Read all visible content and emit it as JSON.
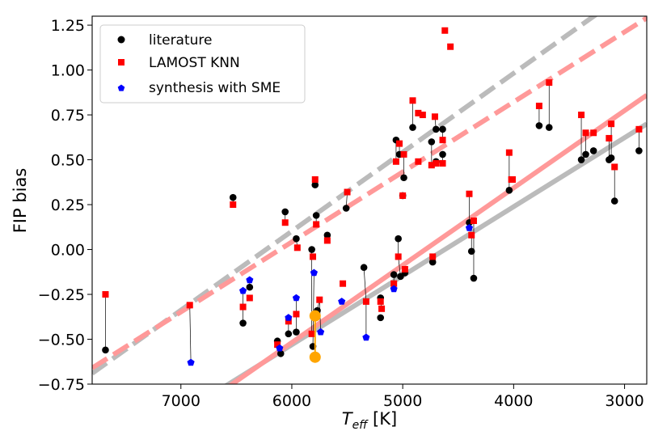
{
  "chart_data": {
    "type": "scatter",
    "x_label_main": "T",
    "x_label_sub": "eff",
    "x_label_unit": " [K]",
    "y_label": "FIP bias",
    "xlim": [
      7800,
      2800
    ],
    "ylim": [
      -0.75,
      1.3
    ],
    "x_reversed": true,
    "x_ticks": [
      7000,
      6000,
      5000,
      4000,
      3000
    ],
    "y_ticks": [
      -0.75,
      -0.5,
      -0.25,
      0.0,
      0.25,
      0.5,
      0.75,
      1.0,
      1.25
    ],
    "x_tick_labels": [
      "7000",
      "6000",
      "5000",
      "4000",
      "3000"
    ],
    "y_tick_labels": [
      "−0.75",
      "−0.50",
      "−0.25",
      "0.00",
      "0.25",
      "0.50",
      "0.75",
      "1.00",
      "1.25"
    ],
    "grid": false,
    "legend_position": "top-left",
    "legend": [
      {
        "label": "literature",
        "marker": "circle",
        "color": "#000000"
      },
      {
        "label": "LAMOST KNN",
        "marker": "square",
        "color": "#ff0000"
      },
      {
        "label": "synthesis with SME",
        "marker": "pentagon",
        "color": "#0000ff"
      }
    ],
    "series": [
      {
        "name": "literature",
        "marker": "circle",
        "color": "#000000",
        "points": [
          [
            7680,
            -0.56
          ],
          [
            6530,
            0.29
          ],
          [
            6440,
            -0.41
          ],
          [
            6380,
            -0.21
          ],
          [
            6130,
            -0.51
          ],
          [
            6100,
            -0.58
          ],
          [
            6060,
            0.21
          ],
          [
            6030,
            -0.47
          ],
          [
            5960,
            0.06
          ],
          [
            5960,
            -0.46
          ],
          [
            5820,
            0.0
          ],
          [
            5810,
            -0.54
          ],
          [
            5790,
            0.36
          ],
          [
            5780,
            0.19
          ],
          [
            5770,
            -0.34
          ],
          [
            5680,
            0.08
          ],
          [
            5510,
            0.23
          ],
          [
            5350,
            -0.1
          ],
          [
            5200,
            -0.27
          ],
          [
            5200,
            -0.38
          ],
          [
            5080,
            -0.14
          ],
          [
            5060,
            0.61
          ],
          [
            5040,
            0.06
          ],
          [
            5030,
            0.53
          ],
          [
            5020,
            -0.15
          ],
          [
            5000,
            0.3
          ],
          [
            4990,
            0.4
          ],
          [
            4980,
            -0.13
          ],
          [
            4910,
            0.68
          ],
          [
            4740,
            0.6
          ],
          [
            4730,
            -0.07
          ],
          [
            4700,
            0.67
          ],
          [
            4700,
            0.49
          ],
          [
            4640,
            0.53
          ],
          [
            4640,
            0.67
          ],
          [
            4400,
            0.15
          ],
          [
            4380,
            -0.01
          ],
          [
            4360,
            -0.16
          ],
          [
            4040,
            0.33
          ],
          [
            3770,
            0.69
          ],
          [
            3680,
            0.68
          ],
          [
            3390,
            0.5
          ],
          [
            3350,
            0.53
          ],
          [
            3280,
            0.55
          ],
          [
            3140,
            0.5
          ],
          [
            3120,
            0.51
          ],
          [
            3090,
            0.27
          ],
          [
            2870,
            0.55
          ]
        ]
      },
      {
        "name": "LAMOST KNN",
        "marker": "square",
        "color": "#ff0000",
        "points": [
          [
            7680,
            -0.25
          ],
          [
            6920,
            -0.31
          ],
          [
            6530,
            0.25
          ],
          [
            6440,
            -0.32
          ],
          [
            6380,
            -0.27
          ],
          [
            6130,
            -0.53
          ],
          [
            6060,
            0.15
          ],
          [
            6030,
            -0.4
          ],
          [
            5960,
            -0.36
          ],
          [
            5950,
            0.01
          ],
          [
            5820,
            -0.47
          ],
          [
            5810,
            -0.04
          ],
          [
            5790,
            0.39
          ],
          [
            5780,
            0.14
          ],
          [
            5750,
            -0.28
          ],
          [
            5680,
            0.05
          ],
          [
            5540,
            -0.19
          ],
          [
            5500,
            0.32
          ],
          [
            5330,
            -0.29
          ],
          [
            5200,
            -0.29
          ],
          [
            5190,
            -0.33
          ],
          [
            5080,
            -0.19
          ],
          [
            5060,
            0.49
          ],
          [
            5040,
            -0.04
          ],
          [
            5030,
            0.59
          ],
          [
            5000,
            0.3
          ],
          [
            4990,
            0.53
          ],
          [
            4980,
            -0.11
          ],
          [
            4910,
            0.83
          ],
          [
            4860,
            0.49
          ],
          [
            4860,
            0.76
          ],
          [
            4820,
            0.75
          ],
          [
            4740,
            0.47
          ],
          [
            4730,
            -0.04
          ],
          [
            4710,
            0.74
          ],
          [
            4700,
            0.48
          ],
          [
            4640,
            0.48
          ],
          [
            4640,
            0.61
          ],
          [
            4620,
            1.22
          ],
          [
            4570,
            1.13
          ],
          [
            4400,
            0.31
          ],
          [
            4380,
            0.08
          ],
          [
            4360,
            0.16
          ],
          [
            4040,
            0.54
          ],
          [
            4020,
            0.39
          ],
          [
            4010,
            0.39
          ],
          [
            3770,
            0.8
          ],
          [
            3680,
            0.93
          ],
          [
            3390,
            0.75
          ],
          [
            3350,
            0.65
          ],
          [
            3280,
            0.65
          ],
          [
            3140,
            0.62
          ],
          [
            3120,
            0.7
          ],
          [
            3090,
            0.46
          ],
          [
            2870,
            0.67
          ]
        ]
      },
      {
        "name": "synthesis with SME",
        "marker": "pentagon",
        "color": "#0000ff",
        "points": [
          [
            6910,
            -0.63
          ],
          [
            6440,
            -0.23
          ],
          [
            6380,
            -0.17
          ],
          [
            6110,
            -0.55
          ],
          [
            6030,
            -0.38
          ],
          [
            5960,
            -0.27
          ],
          [
            5800,
            -0.13
          ],
          [
            5740,
            -0.46
          ],
          [
            5550,
            -0.29
          ],
          [
            5330,
            -0.49
          ],
          [
            5080,
            -0.22
          ],
          [
            4400,
            0.12
          ]
        ]
      }
    ],
    "connectors": [
      [
        [
          7680,
          -0.56
        ],
        [
          7680,
          -0.25
        ]
      ],
      [
        [
          6920,
          -0.31
        ],
        [
          6910,
          -0.63
        ]
      ],
      [
        [
          6530,
          0.29
        ],
        [
          6530,
          0.25
        ]
      ],
      [
        [
          6440,
          -0.41
        ],
        [
          6440,
          -0.23
        ]
      ],
      [
        [
          6380,
          -0.21
        ],
        [
          6380,
          -0.17
        ]
      ],
      [
        [
          6130,
          -0.51
        ],
        [
          6130,
          -0.53
        ]
      ],
      [
        [
          6100,
          -0.58
        ],
        [
          6110,
          -0.55
        ]
      ],
      [
        [
          6060,
          0.21
        ],
        [
          6060,
          0.15
        ]
      ],
      [
        [
          6030,
          -0.47
        ],
        [
          6030,
          -0.38
        ]
      ],
      [
        [
          5960,
          -0.46
        ],
        [
          5960,
          -0.27
        ]
      ],
      [
        [
          5960,
          0.06
        ],
        [
          5950,
          0.01
        ]
      ],
      [
        [
          5820,
          0.0
        ],
        [
          5820,
          -0.47
        ]
      ],
      [
        [
          5810,
          -0.54
        ],
        [
          5800,
          -0.13
        ]
      ],
      [
        [
          5790,
          0.36
        ],
        [
          5790,
          0.39
        ]
      ],
      [
        [
          5780,
          0.19
        ],
        [
          5780,
          0.14
        ]
      ],
      [
        [
          5770,
          -0.34
        ],
        [
          5750,
          -0.28
        ]
      ],
      [
        [
          5740,
          -0.46
        ],
        [
          5750,
          -0.28
        ]
      ],
      [
        [
          5680,
          0.08
        ],
        [
          5680,
          0.05
        ]
      ],
      [
        [
          5510,
          0.23
        ],
        [
          5500,
          0.32
        ]
      ],
      [
        [
          5350,
          -0.1
        ],
        [
          5330,
          -0.29
        ]
      ],
      [
        [
          5330,
          -0.29
        ],
        [
          5330,
          -0.49
        ]
      ],
      [
        [
          5200,
          -0.27
        ],
        [
          5190,
          -0.33
        ]
      ],
      [
        [
          5080,
          -0.14
        ],
        [
          5080,
          -0.22
        ]
      ],
      [
        [
          5060,
          0.61
        ],
        [
          5060,
          0.49
        ]
      ],
      [
        [
          5040,
          0.06
        ],
        [
          5040,
          -0.04
        ]
      ],
      [
        [
          5030,
          0.53
        ],
        [
          5030,
          0.59
        ]
      ],
      [
        [
          5020,
          -0.15
        ],
        [
          5040,
          -0.04
        ]
      ],
      [
        [
          4990,
          0.4
        ],
        [
          4990,
          0.53
        ]
      ],
      [
        [
          4980,
          -0.13
        ],
        [
          4980,
          -0.11
        ]
      ],
      [
        [
          4910,
          0.68
        ],
        [
          4910,
          0.83
        ]
      ],
      [
        [
          4740,
          0.6
        ],
        [
          4740,
          0.47
        ]
      ],
      [
        [
          4730,
          -0.07
        ],
        [
          4730,
          -0.04
        ]
      ],
      [
        [
          4700,
          0.67
        ],
        [
          4710,
          0.74
        ]
      ],
      [
        [
          4640,
          0.67
        ],
        [
          4640,
          0.61
        ]
      ],
      [
        [
          4640,
          0.53
        ],
        [
          4640,
          0.48
        ]
      ],
      [
        [
          4400,
          0.15
        ],
        [
          4400,
          0.31
        ]
      ],
      [
        [
          4380,
          -0.01
        ],
        [
          4380,
          0.08
        ]
      ],
      [
        [
          4360,
          -0.16
        ],
        [
          4360,
          0.16
        ]
      ],
      [
        [
          4040,
          0.33
        ],
        [
          4040,
          0.54
        ]
      ],
      [
        [
          3770,
          0.69
        ],
        [
          3770,
          0.8
        ]
      ],
      [
        [
          3680,
          0.68
        ],
        [
          3680,
          0.93
        ]
      ],
      [
        [
          3390,
          0.5
        ],
        [
          3390,
          0.75
        ]
      ],
      [
        [
          3350,
          0.53
        ],
        [
          3350,
          0.65
        ]
      ],
      [
        [
          3140,
          0.5
        ],
        [
          3140,
          0.62
        ]
      ],
      [
        [
          3120,
          0.51
        ],
        [
          3120,
          0.7
        ]
      ],
      [
        [
          3090,
          0.27
        ],
        [
          3090,
          0.46
        ]
      ],
      [
        [
          2870,
          0.55
        ],
        [
          2870,
          0.67
        ]
      ]
    ],
    "highlight": {
      "color": "#ffa500",
      "points": [
        [
          5790,
          -0.37
        ],
        [
          5790,
          -0.6
        ]
      ]
    },
    "trend_lines": [
      {
        "color": "#bbbbbb",
        "style": "dashed",
        "from": [
          7800,
          -0.69
        ],
        "to": [
          2800,
          1.51
        ]
      },
      {
        "color": "#ff9999",
        "style": "dashed",
        "from": [
          7800,
          -0.66
        ],
        "to": [
          2800,
          1.29
        ]
      },
      {
        "color": "#bbbbbb",
        "style": "solid",
        "from": [
          6700,
          -0.8
        ],
        "to": [
          2800,
          0.7
        ]
      },
      {
        "color": "#ff9999",
        "style": "solid",
        "from": [
          6700,
          -0.82
        ],
        "to": [
          2800,
          0.86
        ]
      }
    ]
  }
}
